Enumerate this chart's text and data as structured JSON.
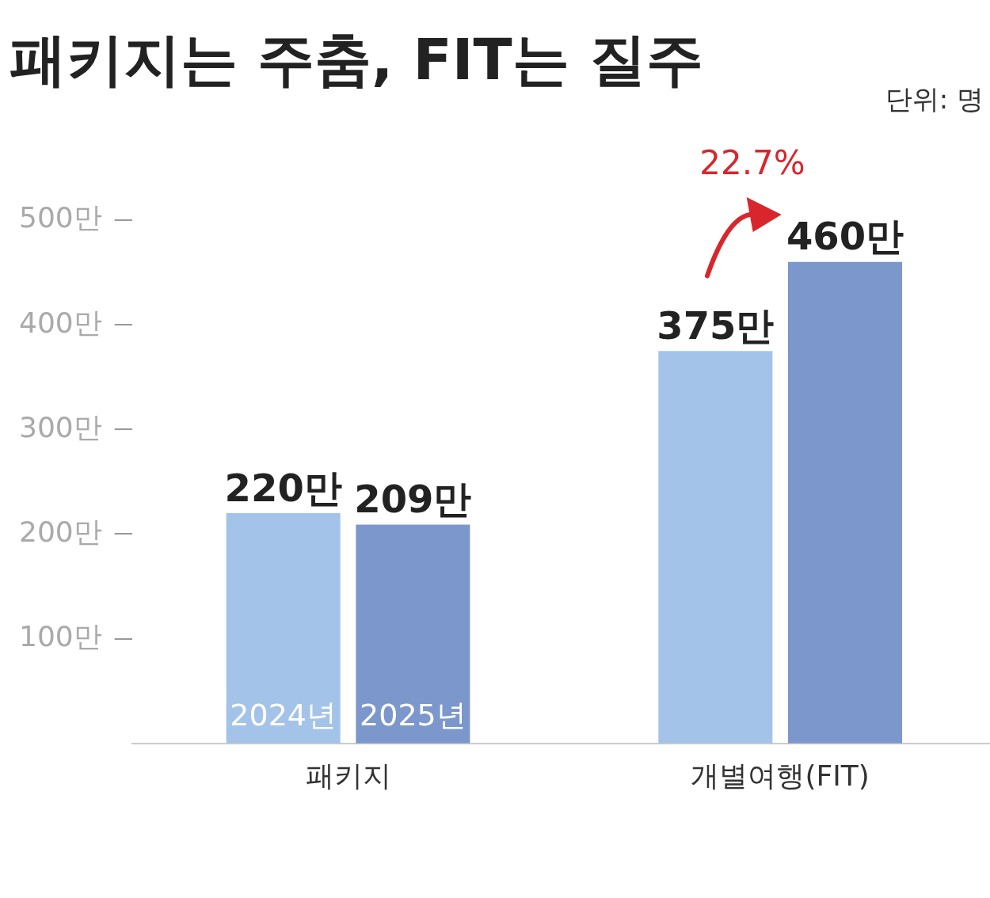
{
  "chart_data": {
    "type": "bar",
    "title": "패키지는 주춤, FIT는 질주",
    "categories": [
      "패키지",
      "개별여행(FIT)"
    ],
    "series": [
      {
        "name": "2024년",
        "color": "#a3c4e8",
        "values": [
          220,
          375
        ],
        "value_labels": [
          "220만",
          "375만"
        ]
      },
      {
        "name": "2025년",
        "color": "#7b97cb",
        "values": [
          209,
          460
        ],
        "value_labels": [
          "209만",
          "460만"
        ]
      }
    ],
    "ylim": [
      0,
      500
    ],
    "yticks": [
      {
        "value": 100,
        "label": "100만"
      },
      {
        "value": 200,
        "label": "200만"
      },
      {
        "value": 300,
        "label": "300만"
      },
      {
        "value": 400,
        "label": "400만"
      },
      {
        "value": 500,
        "label": "500만"
      }
    ],
    "grid": false,
    "legend": false,
    "annotations": [
      "단위: 명",
      "22.7%"
    ]
  }
}
